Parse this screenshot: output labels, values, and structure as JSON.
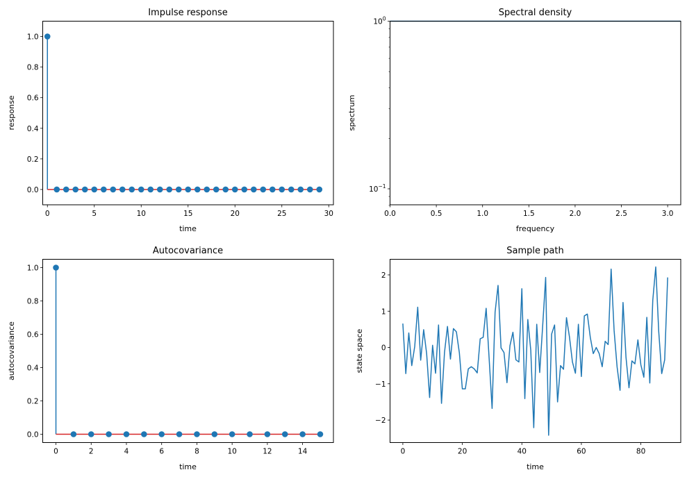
{
  "chart_data": [
    {
      "id": "impulse",
      "type": "stem",
      "title": "Impulse response",
      "xlabel": "time",
      "ylabel": "response",
      "xlim": [
        -0.5,
        30.5
      ],
      "ylim": [
        -0.1,
        1.1
      ],
      "xticks": [
        0,
        5,
        10,
        15,
        20,
        25,
        30
      ],
      "yticks": [
        0.0,
        0.2,
        0.4,
        0.6,
        0.8,
        1.0
      ],
      "ytick_labels": [
        "0.0",
        "0.2",
        "0.4",
        "0.6",
        "0.8",
        "1.0"
      ],
      "x": [
        0,
        1,
        2,
        3,
        4,
        5,
        6,
        7,
        8,
        9,
        10,
        11,
        12,
        13,
        14,
        15,
        16,
        17,
        18,
        19,
        20,
        21,
        22,
        23,
        24,
        25,
        26,
        27,
        28,
        29
      ],
      "values": [
        1,
        0,
        0,
        0,
        0,
        0,
        0,
        0,
        0,
        0,
        0,
        0,
        0,
        0,
        0,
        0,
        0,
        0,
        0,
        0,
        0,
        0,
        0,
        0,
        0,
        0,
        0,
        0,
        0,
        0
      ],
      "colors": {
        "stem": "#1f77b4",
        "baseline": "#d62728"
      }
    },
    {
      "id": "spectral",
      "type": "line",
      "title": "Spectral density",
      "xlabel": "frequency",
      "ylabel": "spectrum",
      "yscale": "log",
      "xlim": [
        0,
        3.1416
      ],
      "ylim": [
        0.0803,
        1.0
      ],
      "xticks": [
        0.0,
        0.5,
        1.0,
        1.5,
        2.0,
        2.5,
        3.0
      ],
      "xtick_labels": [
        "0.0",
        "0.5",
        "1.0",
        "1.5",
        "2.0",
        "2.5",
        "3.0"
      ],
      "ytick_major": [
        {
          "value": 1.0,
          "base": "10",
          "exp": "0"
        },
        {
          "value": 0.1,
          "base": "10",
          "exp": "−1"
        }
      ],
      "ytick_minor": [
        0.9,
        0.8,
        0.7,
        0.6,
        0.5,
        0.4,
        0.3,
        0.2,
        0.09,
        0.08
      ],
      "x": [
        0,
        3.1416
      ],
      "values": [
        1.0,
        1.0
      ],
      "colors": {
        "line": "#1f77b4"
      }
    },
    {
      "id": "autocov",
      "type": "stem",
      "title": "Autocovariance",
      "xlabel": "time",
      "ylabel": "autocovariance",
      "xlim": [
        -0.75,
        15.75
      ],
      "ylim": [
        -0.05,
        1.05
      ],
      "xticks": [
        0,
        2,
        4,
        6,
        8,
        10,
        12,
        14
      ],
      "yticks": [
        0.0,
        0.2,
        0.4,
        0.6,
        0.8,
        1.0
      ],
      "ytick_labels": [
        "0.0",
        "0.2",
        "0.4",
        "0.6",
        "0.8",
        "1.0"
      ],
      "x": [
        0,
        1,
        2,
        3,
        4,
        5,
        6,
        7,
        8,
        9,
        10,
        11,
        12,
        13,
        14,
        15
      ],
      "values": [
        1,
        0,
        0,
        0,
        0,
        0,
        0,
        0,
        0,
        0,
        0,
        0,
        0,
        0,
        0,
        0
      ],
      "colors": {
        "stem": "#1f77b4",
        "baseline": "#d62728"
      }
    },
    {
      "id": "sample",
      "type": "line",
      "title": "Sample path",
      "xlabel": "time",
      "ylabel": "state space",
      "xlim": [
        -4.3,
        93.4
      ],
      "ylim": [
        -2.62,
        2.43
      ],
      "xticks": [
        0,
        20,
        40,
        60,
        80
      ],
      "yticks": [
        -2,
        -1,
        0,
        1,
        2
      ],
      "ytick_labels": [
        "−2",
        "−1",
        "0",
        "1",
        "2"
      ],
      "values": [
        0.66,
        -0.72,
        0.4,
        -0.5,
        0.03,
        1.11,
        -0.35,
        0.49,
        -0.17,
        -1.38,
        0.06,
        -0.71,
        0.62,
        -1.54,
        -0.14,
        0.58,
        -0.32,
        0.52,
        0.43,
        -0.15,
        -1.14,
        -1.14,
        -0.59,
        -0.53,
        -0.59,
        -0.7,
        0.24,
        0.28,
        1.08,
        -0.3,
        -1.68,
        0.97,
        1.71,
        -0.01,
        -0.14,
        -0.97,
        0.05,
        0.42,
        -0.34,
        -0.4,
        1.62,
        -1.41,
        0.77,
        -0.08,
        -2.21,
        0.64,
        -0.69,
        0.6,
        1.93,
        -2.42,
        0.37,
        0.62,
        -1.5,
        -0.5,
        -0.6,
        0.82,
        0.29,
        -0.4,
        -0.71,
        0.64,
        -0.8,
        0.87,
        0.92,
        0.28,
        -0.17,
        0.0,
        -0.17,
        -0.53,
        0.17,
        0.08,
        2.16,
        0.47,
        -0.53,
        -1.18,
        1.24,
        -0.27,
        -1.11,
        -0.37,
        -0.45,
        0.21,
        -0.48,
        -0.82,
        0.83,
        -0.98,
        1.3,
        2.22,
        0.44,
        -0.72,
        -0.34,
        1.93
      ],
      "colors": {
        "line": "#1f77b4"
      }
    }
  ]
}
